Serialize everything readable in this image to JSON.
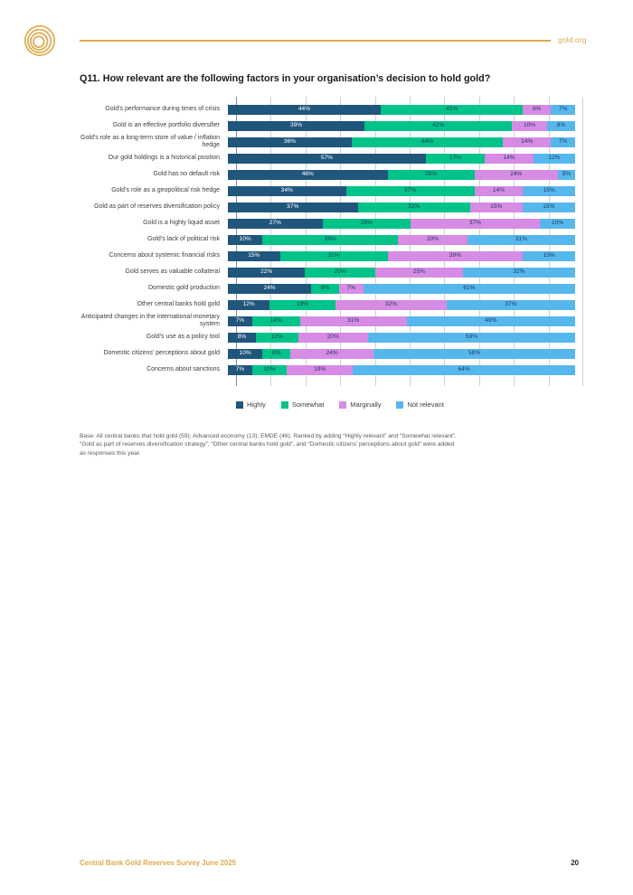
{
  "header": {
    "site_link": "gold.org",
    "accent_color": "#dcaa4f"
  },
  "title": "Q11. How relevant are the following factors in your organisation’s decision to hold gold?",
  "chart_data": {
    "type": "bar",
    "orientation": "horizontal",
    "stacked": true,
    "x_range": [
      0,
      100
    ],
    "gridline_step_pct": 10,
    "grid_on": true,
    "legend_position": "bottom",
    "series": [
      {
        "name": "Highly",
        "color": "#20567c",
        "label_color": "#ffffff"
      },
      {
        "name": "Somewhat",
        "color": "#00c389",
        "label_color": "#1b3a5c"
      },
      {
        "name": "Marginally",
        "color": "#d68be4",
        "label_color": "#1b3a5c"
      },
      {
        "name": "Not relevant",
        "color": "#56b7ed",
        "label_color": "#1b3a5c"
      }
    ],
    "rows": [
      {
        "label": "Gold’s performance during times of crisis",
        "values": [
          44,
          41,
          8,
          7
        ]
      },
      {
        "label": "Gold is an effective portfolio diversifier",
        "values": [
          39,
          42,
          10,
          8
        ]
      },
      {
        "label": "Gold’s role as a long-term store of value / inflation hedge",
        "values": [
          36,
          44,
          14,
          7
        ]
      },
      {
        "label": "Our gold holdings is a historical position",
        "values": [
          57,
          17,
          14,
          12
        ]
      },
      {
        "label": "Gold has no default risk",
        "values": [
          46,
          25,
          24,
          5
        ]
      },
      {
        "label": "Gold’s role as a geopolitical risk hedge",
        "values": [
          34,
          37,
          14,
          15
        ]
      },
      {
        "label": "Gold as part of reserves diversification policy",
        "values": [
          37,
          32,
          15,
          15
        ]
      },
      {
        "label": "Gold is a highly liquid asset",
        "values": [
          27,
          25,
          37,
          10
        ]
      },
      {
        "label": "Gold’s lack of political risk",
        "values": [
          10,
          39,
          20,
          31
        ]
      },
      {
        "label": "Concerns about systemic financial risks",
        "values": [
          15,
          31,
          39,
          15
        ]
      },
      {
        "label": "Gold serves as valuable collateral",
        "values": [
          22,
          20,
          25,
          32
        ]
      },
      {
        "label": "Domestic gold production",
        "values": [
          24,
          8,
          7,
          61
        ]
      },
      {
        "label": "Other central banks hold gold",
        "values": [
          12,
          19,
          32,
          37
        ]
      },
      {
        "label": "Anticipated changes in the international monetary system",
        "values": [
          7,
          14,
          31,
          49
        ]
      },
      {
        "label": "Gold’s use as a policy tool",
        "values": [
          8,
          12,
          20,
          59
        ]
      },
      {
        "label": "Domestic citizens’ perceptions about gold",
        "values": [
          10,
          8,
          24,
          58
        ]
      },
      {
        "label": "Concerns about sanctions",
        "values": [
          7,
          10,
          19,
          64
        ]
      }
    ]
  },
  "footnote_lines": [
    "Base: All central banks that hold gold (59); Advanced economy (13); EMDE (46). Ranked by adding “Highly relevant” and “Somewhat relevant”.",
    "“Gold as part of reserves diversification strategy”, “Other central banks hold gold”, and “Domestic citizens’ perceptions about gold” were added",
    "as responses this year."
  ],
  "footer": {
    "left_text": "Central Bank Gold Reserves Survey June 2025",
    "page_number": "20"
  }
}
